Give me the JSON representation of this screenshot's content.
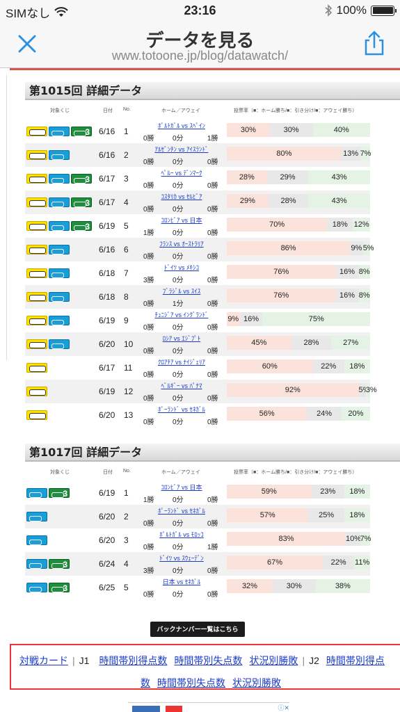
{
  "status": {
    "carrier": "SIMなし",
    "time": "23:16",
    "battery": "100%",
    "battery_level": 1.0
  },
  "nav": {
    "title": "データを見る",
    "url": "www.totoone.jp/blog/datawatch/"
  },
  "table_headers": {
    "target": "対象くじ",
    "date": "日付",
    "no": "No.",
    "match": "ホーム／アウェイ",
    "vote": "投票率（■：ホーム勝ち/■：引き分け/■：アウェイ勝ち）"
  },
  "sections": [
    {
      "title": "第1015回 詳細データ",
      "rows": [
        {
          "lotto": "ybg",
          "date": "6/16",
          "no": "1",
          "match": "ﾎﾟﾙﾄｶﾞﾙ vs ｽﾍﾟｲﾝ",
          "h": "0勝",
          "d": "0分",
          "a": "1勝",
          "ph": 30,
          "pd": 30,
          "pa": 40,
          "lh": "30%",
          "ld": "30%",
          "la": "40%"
        },
        {
          "lotto": "yb",
          "date": "6/16",
          "no": "2",
          "match": "ｱﾙｾﾞﾝﾁﾝ vs ｱｲｽﾗﾝﾄﾞ",
          "h": "0勝",
          "d": "0分",
          "a": "0勝",
          "ph": 80,
          "pd": 13,
          "pa": 7,
          "lh": "80%",
          "ld": "13%",
          "la": "7%"
        },
        {
          "lotto": "ybg",
          "date": "6/17",
          "no": "3",
          "match": "ﾍﾟﾙｰ vs ﾃﾞﾝﾏｰｸ",
          "h": "0勝",
          "d": "0分",
          "a": "0勝",
          "ph": 28,
          "pd": 29,
          "pa": 43,
          "lh": "28%",
          "ld": "29%",
          "la": "43%"
        },
        {
          "lotto": "ybg",
          "date": "6/17",
          "no": "4",
          "match": "ｺｽﾀﾘｶ vs ｾﾙﾋﾞｱ",
          "h": "0勝",
          "d": "0分",
          "a": "0勝",
          "ph": 29,
          "pd": 28,
          "pa": 43,
          "lh": "29%",
          "ld": "28%",
          "la": "43%"
        },
        {
          "lotto": "ybg",
          "date": "6/19",
          "no": "5",
          "match": "ｺﾛﾝﾋﾞｱ vs 日本",
          "h": "1勝",
          "d": "0分",
          "a": "0勝",
          "ph": 70,
          "pd": 18,
          "pa": 12,
          "lh": "70%",
          "ld": "18%",
          "la": "12%"
        },
        {
          "lotto": "yb",
          "date": "6/16",
          "no": "6",
          "match": "ﾌﾗﾝｽ vs ｵｰｽﾄﾗﾘｱ",
          "h": "0勝",
          "d": "0分",
          "a": "0勝",
          "ph": 86,
          "pd": 9,
          "pa": 5,
          "lh": "86%",
          "ld": "9%",
          "la": "5%"
        },
        {
          "lotto": "yb",
          "date": "6/18",
          "no": "7",
          "match": "ﾄﾞｲﾂ vs ﾒｷｼｺ",
          "h": "3勝",
          "d": "0分",
          "a": "0勝",
          "ph": 76,
          "pd": 16,
          "pa": 8,
          "lh": "76%",
          "ld": "16%",
          "la": "8%"
        },
        {
          "lotto": "yb",
          "date": "6/18",
          "no": "8",
          "match": "ﾌﾞﾗｼﾞﾙ vs ｽｲｽ",
          "h": "0勝",
          "d": "1分",
          "a": "0勝",
          "ph": 76,
          "pd": 16,
          "pa": 8,
          "lh": "76%",
          "ld": "16%",
          "la": "8%"
        },
        {
          "lotto": "yb",
          "date": "6/19",
          "no": "9",
          "match": "ﾁｭﾆｼﾞｱ vs ｲﾝｸﾞﾗﾝﾄﾞ",
          "h": "0勝",
          "d": "0分",
          "a": "0勝",
          "ph": 9,
          "pd": 16,
          "pa": 75,
          "lh": "9%",
          "ld": "16%",
          "la": "75%"
        },
        {
          "lotto": "yb",
          "date": "6/20",
          "no": "10",
          "match": "ﾛｼｱ vs ｴｼﾞﾌﾟﾄ",
          "h": "0勝",
          "d": "0分",
          "a": "0勝",
          "ph": 45,
          "pd": 28,
          "pa": 27,
          "lh": "45%",
          "ld": "28%",
          "la": "27%"
        },
        {
          "lotto": "y",
          "date": "6/17",
          "no": "11",
          "match": "ｸﾛｱﾁｱ vs ﾅｲｼﾞｪﾘｱ",
          "h": "0勝",
          "d": "0分",
          "a": "0勝",
          "ph": 60,
          "pd": 22,
          "pa": 18,
          "lh": "60%",
          "ld": "22%",
          "la": "18%"
        },
        {
          "lotto": "y",
          "date": "6/19",
          "no": "12",
          "match": "ﾍﾞﾙｷﾞｰ vs ﾊﾟﾅﾏ",
          "h": "0勝",
          "d": "0分",
          "a": "0勝",
          "ph": 92,
          "pd": 5,
          "pa": 3,
          "lh": "92%",
          "ld": "5%",
          "la": "3%"
        },
        {
          "lotto": "y",
          "date": "6/20",
          "no": "13",
          "match": "ﾎﾟｰﾗﾝﾄﾞ vs ｾﾈｶﾞﾙ",
          "h": "0勝",
          "d": "0分",
          "a": "0勝",
          "ph": 56,
          "pd": 24,
          "pa": 20,
          "lh": "56%",
          "ld": "24%",
          "la": "20%"
        }
      ]
    },
    {
      "title": "第1017回 詳細データ",
      "rows": [
        {
          "lotto": "bg",
          "date": "6/19",
          "no": "1",
          "match": "ｺﾛﾝﾋﾞｱ vs 日本",
          "h": "1勝",
          "d": "0分",
          "a": "0勝",
          "ph": 59,
          "pd": 23,
          "pa": 18,
          "lh": "59%",
          "ld": "23%",
          "la": "18%"
        },
        {
          "lotto": "b",
          "date": "6/20",
          "no": "2",
          "match": "ﾎﾟｰﾗﾝﾄﾞ vs ｾﾈｶﾞﾙ",
          "h": "0勝",
          "d": "0分",
          "a": "0勝",
          "ph": 57,
          "pd": 25,
          "pa": 18,
          "lh": "57%",
          "ld": "25%",
          "la": "18%"
        },
        {
          "lotto": "b",
          "date": "6/20",
          "no": "3",
          "match": "ﾎﾟﾙﾄｶﾞﾙ vs ﾓﾛｯｺ",
          "h": "0勝",
          "d": "0分",
          "a": "1勝",
          "ph": 83,
          "pd": 10,
          "pa": 7,
          "lh": "83%",
          "ld": "10%",
          "la": "7%"
        },
        {
          "lotto": "bg",
          "date": "6/24",
          "no": "4",
          "match": "ﾄﾞｲﾂ vs ｽｳｪｰﾃﾞﾝ",
          "h": "3勝",
          "d": "0分",
          "a": "0勝",
          "ph": 67,
          "pd": 22,
          "pa": 11,
          "lh": "67%",
          "ld": "22%",
          "la": "11%"
        },
        {
          "lotto": "bg",
          "date": "6/25",
          "no": "5",
          "match": "日本 vs ｾﾈｶﾞﾙ",
          "h": "0勝",
          "d": "0分",
          "a": "0勝",
          "ph": 32,
          "pd": 30,
          "pa": 38,
          "lh": "32%",
          "ld": "30%",
          "la": "38%"
        }
      ]
    }
  ],
  "backnumber_label": "バックナンバー一覧はこちら",
  "links": {
    "card": "対戦カード",
    "j1": "J1",
    "j1_score": "時間帯別得点数",
    "j1_concede": "時間帯別失点数",
    "j1_status": "状況別勝敗",
    "j2": "J2",
    "j2_score_a": "時間帯別得点",
    "j2_score_b": "数",
    "j2_concede": "時間帯別失点数",
    "j2_status": "状況別勝敗"
  },
  "colors": {
    "home": "#fbe3dc",
    "draw": "#e8e8e8",
    "away": "#e5f3e5",
    "link": "#1a3cc8",
    "accent": "#e33"
  }
}
